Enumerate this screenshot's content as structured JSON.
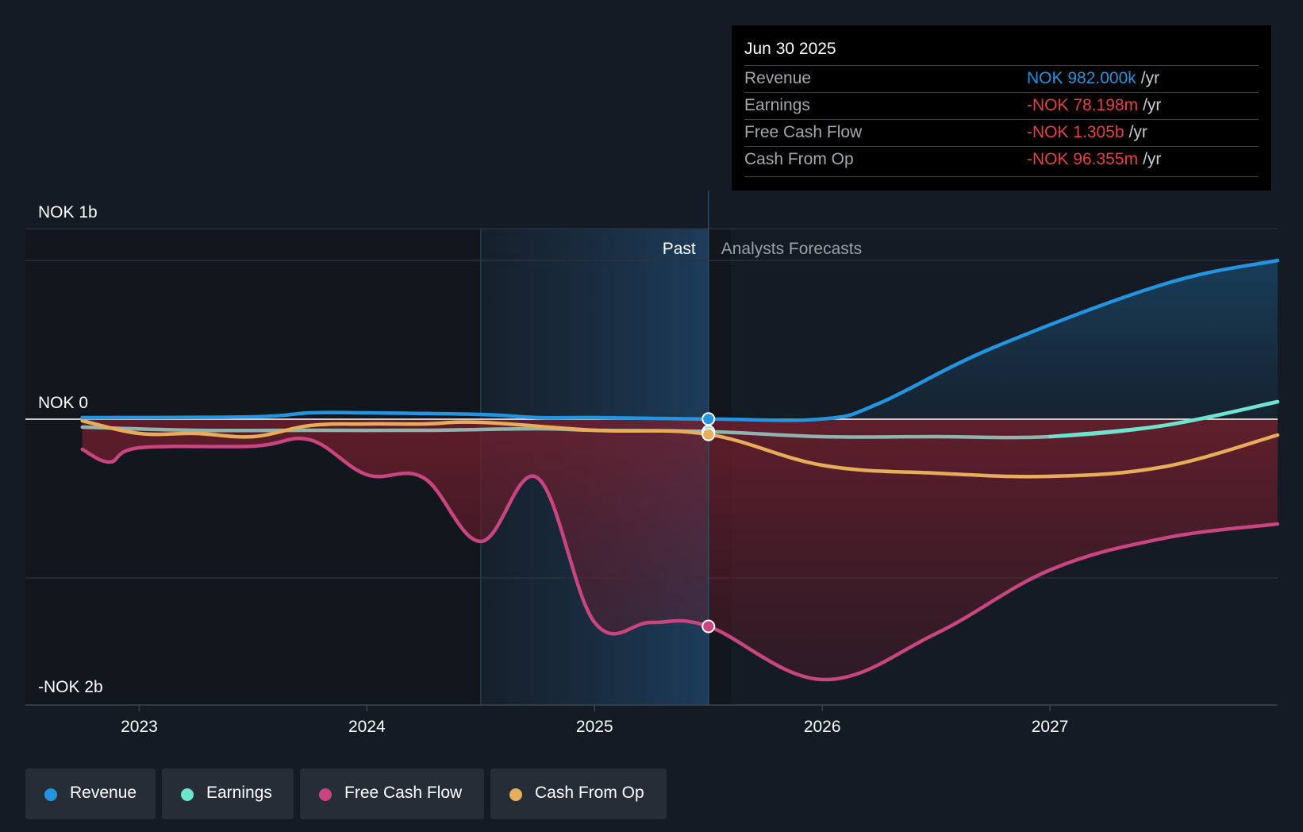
{
  "tooltip": {
    "date": "Jun 30 2025",
    "rows": [
      {
        "label": "Revenue",
        "value": "NOK 982.000k",
        "unit": "/yr",
        "color": "#2394df"
      },
      {
        "label": "Earnings",
        "value": "-NOK 78.198m",
        "unit": "/yr",
        "color": "#e64141"
      },
      {
        "label": "Free Cash Flow",
        "value": "-NOK 1.305b",
        "unit": "/yr",
        "color": "#e64141"
      },
      {
        "label": "Cash From Op",
        "value": "-NOK 96.355m",
        "unit": "/yr",
        "color": "#e64141"
      }
    ]
  },
  "legend": [
    {
      "label": "Revenue",
      "color": "#2394df"
    },
    {
      "label": "Earnings",
      "color": "#6ce5d0"
    },
    {
      "label": "Free Cash Flow",
      "color": "#c8457f"
    },
    {
      "label": "Cash From Op",
      "color": "#e8ad5a"
    }
  ],
  "chart_data": {
    "type": "line",
    "y_tick_labels": [
      {
        "value": 1.2,
        "label": "NOK 1b"
      },
      {
        "value": 0,
        "label": "NOK 0"
      },
      {
        "value": -1.7,
        "label": "-NOK 2b"
      }
    ],
    "ylim": [
      -1.8,
      1.2
    ],
    "gridlines": [
      1.2,
      1.0,
      0,
      -1.0
    ],
    "xlim": [
      2022.5,
      2028.0
    ],
    "x_ticks": [
      2023,
      2024,
      2025,
      2026,
      2027
    ],
    "x_tick_labels": [
      "2023",
      "2024",
      "2025",
      "2026",
      "2027"
    ],
    "past_label": "Past",
    "forecast_label": "Analysts Forecasts",
    "highlight_start": 2024.5,
    "divider_x": 2025.5,
    "series": [
      {
        "name": "Revenue",
        "color": "#2394df",
        "forecast_fill": true,
        "points": [
          [
            2022.75,
            0.01
          ],
          [
            2023.5,
            0.015
          ],
          [
            2023.75,
            0.04
          ],
          [
            2024.0,
            0.04
          ],
          [
            2024.5,
            0.03
          ],
          [
            2024.75,
            0.01
          ],
          [
            2025.0,
            0.01
          ],
          [
            2025.5,
            0.001
          ],
          [
            2026.0,
            0.001
          ],
          [
            2026.25,
            0.1
          ],
          [
            2026.75,
            0.45
          ],
          [
            2027.5,
            0.85
          ],
          [
            2028.0,
            1.0
          ]
        ]
      },
      {
        "name": "Earnings",
        "color": "#6ce5d0",
        "points": [
          [
            2022.75,
            -0.05
          ],
          [
            2023.25,
            -0.07
          ],
          [
            2023.75,
            -0.07
          ],
          [
            2024.25,
            -0.07
          ],
          [
            2024.75,
            -0.06
          ],
          [
            2025.0,
            -0.07
          ],
          [
            2025.5,
            -0.078
          ],
          [
            2026.0,
            -0.11
          ],
          [
            2026.5,
            -0.11
          ],
          [
            2027.0,
            -0.11
          ],
          [
            2027.5,
            -0.04
          ],
          [
            2028.0,
            0.11
          ]
        ]
      },
      {
        "name": "Free Cash Flow",
        "color": "#c8457f",
        "points": [
          [
            2022.75,
            -0.19
          ],
          [
            2022.87,
            -0.27
          ],
          [
            2023.0,
            -0.18
          ],
          [
            2023.5,
            -0.17
          ],
          [
            2023.75,
            -0.13
          ],
          [
            2024.0,
            -0.35
          ],
          [
            2024.25,
            -0.37
          ],
          [
            2024.5,
            -0.77
          ],
          [
            2024.75,
            -0.37
          ],
          [
            2025.0,
            -1.28
          ],
          [
            2025.25,
            -1.28
          ],
          [
            2025.5,
            -1.305
          ],
          [
            2026.0,
            -1.64
          ],
          [
            2026.5,
            -1.35
          ],
          [
            2027.0,
            -0.95
          ],
          [
            2027.5,
            -0.75
          ],
          [
            2028.0,
            -0.66
          ]
        ]
      },
      {
        "name": "Cash From Op",
        "color": "#e8ad5a",
        "points": [
          [
            2022.75,
            -0.01
          ],
          [
            2023.0,
            -0.09
          ],
          [
            2023.25,
            -0.09
          ],
          [
            2023.5,
            -0.11
          ],
          [
            2023.75,
            -0.04
          ],
          [
            2024.0,
            -0.03
          ],
          [
            2024.25,
            -0.03
          ],
          [
            2024.5,
            -0.02
          ],
          [
            2025.0,
            -0.07
          ],
          [
            2025.5,
            -0.096
          ],
          [
            2026.0,
            -0.29
          ],
          [
            2026.5,
            -0.34
          ],
          [
            2027.0,
            -0.36
          ],
          [
            2027.5,
            -0.3
          ],
          [
            2028.0,
            -0.1
          ]
        ]
      }
    ],
    "markers": [
      {
        "series": "Revenue",
        "x": 2025.5,
        "y": 0.001
      },
      {
        "series": "Earnings",
        "x": 2025.5,
        "y": -0.078
      },
      {
        "series": "Cash From Op",
        "x": 2025.5,
        "y": -0.096
      },
      {
        "series": "Free Cash Flow",
        "x": 2025.5,
        "y": -1.305
      }
    ]
  }
}
